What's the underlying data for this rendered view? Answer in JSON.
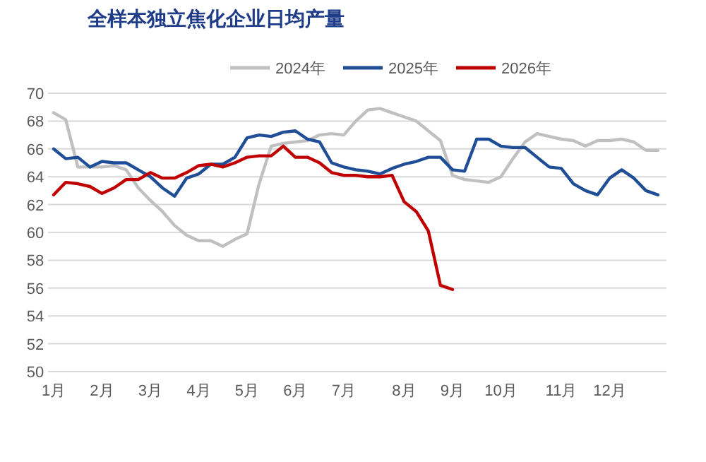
{
  "chart_data": {
    "type": "line",
    "title": "全样本独立焦化企业日均产量",
    "categories": [
      "1月",
      null,
      null,
      null,
      "2月",
      null,
      null,
      null,
      "3月",
      null,
      null,
      null,
      "4月",
      null,
      null,
      null,
      "5月",
      null,
      null,
      null,
      "6月",
      null,
      null,
      null,
      "7月",
      null,
      null,
      null,
      null,
      "8月",
      null,
      null,
      null,
      "9月",
      null,
      null,
      null,
      "10月",
      null,
      null,
      null,
      null,
      "11月",
      null,
      null,
      null,
      "12月",
      null,
      null,
      null,
      null
    ],
    "series": [
      {
        "name": "2024年",
        "color": "#c0c0c0",
        "values": [
          68.6,
          68.1,
          64.7,
          64.7,
          64.7,
          64.8,
          64.5,
          63.2,
          62.3,
          61.5,
          60.5,
          59.8,
          59.4,
          59.4,
          59.0,
          59.5,
          59.9,
          63.5,
          66.2,
          66.4,
          66.5,
          66.6,
          67.0,
          67.1,
          67.0,
          68.0,
          68.8,
          68.9,
          68.6,
          68.3,
          68.0,
          67.3,
          66.6,
          64.1,
          63.8,
          63.7,
          63.6,
          64.0,
          65.3,
          66.5,
          67.1,
          66.9,
          66.7,
          66.6,
          66.2,
          66.6,
          66.6,
          66.7,
          66.5,
          65.9,
          65.9
        ]
      },
      {
        "name": "2025年",
        "color": "#1f4e96",
        "values": [
          66.0,
          65.3,
          65.4,
          64.7,
          65.1,
          65.0,
          65.0,
          64.5,
          64.0,
          63.2,
          62.6,
          63.9,
          64.2,
          64.9,
          64.9,
          65.4,
          66.8,
          67.0,
          66.9,
          67.2,
          67.3,
          66.7,
          66.5,
          65.0,
          64.7,
          64.5,
          64.4,
          64.2,
          64.6,
          64.9,
          65.1,
          65.4,
          65.4,
          64.5,
          64.4,
          66.7,
          66.7,
          66.2,
          66.1,
          66.1,
          65.4,
          64.7,
          64.6,
          63.5,
          63.0,
          62.7,
          63.9,
          64.5,
          63.9,
          63.0,
          62.7
        ]
      },
      {
        "name": "2026年",
        "color": "#c00000",
        "values": [
          62.7,
          63.6,
          63.5,
          63.3,
          62.8,
          63.2,
          63.8,
          63.8,
          64.3,
          63.9,
          63.9,
          64.3,
          64.8,
          64.9,
          64.7,
          65.0,
          65.4,
          65.5,
          65.5,
          66.2,
          65.4,
          65.4,
          65.0,
          64.3,
          64.1,
          64.1,
          64.0,
          64.0,
          64.1,
          62.2,
          61.5,
          60.1,
          56.2,
          55.9,
          null,
          null,
          null,
          null,
          null,
          null,
          null,
          null,
          null,
          null,
          null,
          null,
          null,
          null,
          null,
          null,
          null
        ]
      }
    ],
    "ylim": [
      50,
      70
    ],
    "yticks": [
      50,
      52,
      54,
      56,
      58,
      60,
      62,
      64,
      66,
      68,
      70
    ],
    "grid": "y",
    "legend": "top",
    "marker": "none",
    "line_style": "solid"
  }
}
